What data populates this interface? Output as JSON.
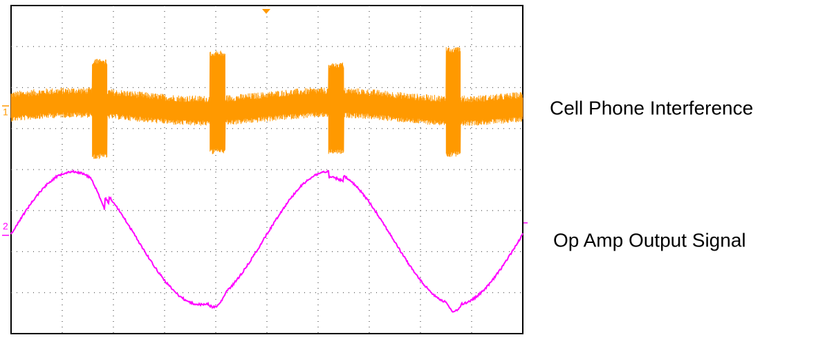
{
  "scope": {
    "channel_1_marker": "1",
    "channel_2_marker": "2"
  },
  "labels": {
    "top": "Cell Phone Interference",
    "bottom": "Op Amp Output Signal"
  }
}
